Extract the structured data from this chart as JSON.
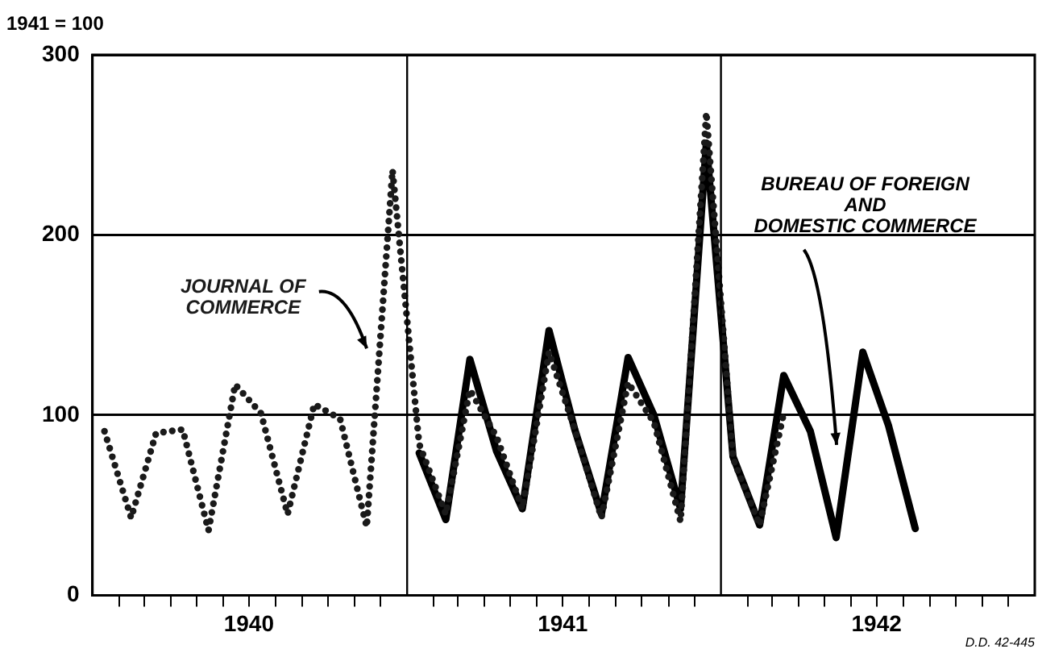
{
  "chart_data": {
    "type": "line",
    "ylabel": "1941 = 100",
    "xlim": [
      "1940-01-01",
      "1943-01-01"
    ],
    "ylim": [
      0,
      300
    ],
    "yticks": [
      0,
      100,
      200,
      300
    ],
    "xticks": [
      {
        "value": "1940-02-01",
        "label": null
      },
      {
        "value": "1940-03-01",
        "label": null
      },
      {
        "value": "1940-04-01",
        "label": null
      },
      {
        "value": "1940-05-01",
        "label": null
      },
      {
        "value": "1940-06-01",
        "label": null
      },
      {
        "value": "1940-07-01",
        "label": "1940"
      },
      {
        "value": "1940-08-01",
        "label": null
      },
      {
        "value": "1940-09-01",
        "label": null
      },
      {
        "value": "1940-10-01",
        "label": null
      },
      {
        "value": "1940-11-01",
        "label": null
      },
      {
        "value": "1940-12-01",
        "label": null
      },
      {
        "value": "1941-02-01",
        "label": null
      },
      {
        "value": "1941-03-01",
        "label": null
      },
      {
        "value": "1941-04-01",
        "label": null
      },
      {
        "value": "1941-05-01",
        "label": null
      },
      {
        "value": "1941-06-01",
        "label": null
      },
      {
        "value": "1941-07-01",
        "label": "1941"
      },
      {
        "value": "1941-08-01",
        "label": null
      },
      {
        "value": "1941-09-01",
        "label": null
      },
      {
        "value": "1941-10-01",
        "label": null
      },
      {
        "value": "1941-11-01",
        "label": null
      },
      {
        "value": "1941-12-01",
        "label": null
      },
      {
        "value": "1942-02-01",
        "label": null
      },
      {
        "value": "1942-03-01",
        "label": null
      },
      {
        "value": "1942-04-01",
        "label": null
      },
      {
        "value": "1942-05-01",
        "label": null
      },
      {
        "value": "1942-06-01",
        "label": null
      },
      {
        "value": "1942-07-01",
        "label": "1942"
      },
      {
        "value": "1942-08-01",
        "label": null
      },
      {
        "value": "1942-09-01",
        "label": null
      },
      {
        "value": "1942-10-01",
        "label": null
      },
      {
        "value": "1942-11-01",
        "label": null
      },
      {
        "value": "1942-12-01",
        "label": null
      }
    ],
    "grid": "y",
    "marker": "none",
    "ref_lines": [
      {
        "axis": "x",
        "value": "1941-01-01",
        "color": "#000000"
      },
      {
        "axis": "x",
        "value": "1942-01-01",
        "color": "#000000"
      }
    ],
    "series": [
      {
        "name": "JOURNAL OF\nCOMMERCE",
        "color": "#1a1a1a",
        "line_style": "dotted",
        "x": [
          "1940-01-15",
          "1940-02-15",
          "1940-03-15",
          "1940-04-15",
          "1940-05-15",
          "1940-06-15",
          "1940-07-15",
          "1940-08-15",
          "1940-09-15",
          "1940-10-15",
          "1940-11-15",
          "1940-12-15",
          "1941-01-15",
          "1941-02-15",
          "1941-03-15",
          "1941-04-15",
          "1941-05-15",
          "1941-06-15",
          "1941-07-15",
          "1941-08-15",
          "1941-09-15",
          "1941-10-15",
          "1941-11-15",
          "1941-12-15",
          "1942-01-15",
          "1942-02-15",
          "1942-03-15"
        ],
        "values": [
          91,
          43,
          90,
          92,
          36,
          117,
          101,
          45,
          106,
          98,
          38,
          236,
          84,
          45,
          114,
          88,
          48,
          135,
          92,
          43,
          118,
          96,
          41,
          268,
          76,
          39,
          101
        ]
      },
      {
        "name": "BUREAU OF FOREIGN\nAND\nDOMESTIC COMMERCE",
        "color": "#000000",
        "line_style": "solid",
        "x": [
          "1941-01-15",
          "1941-02-15",
          "1941-03-15",
          "1941-04-15",
          "1941-05-15",
          "1941-06-15",
          "1941-07-15",
          "1941-08-15",
          "1941-09-15",
          "1941-10-15",
          "1941-11-15",
          "1941-12-15",
          "1942-01-15",
          "1942-02-15",
          "1942-03-15",
          "1942-04-15",
          "1942-05-15",
          "1942-06-15",
          "1942-07-15",
          "1942-08-15"
        ],
        "values": [
          79,
          42,
          131,
          80,
          48,
          147,
          92,
          45,
          132,
          100,
          48,
          251,
          77,
          39,
          122,
          91,
          32,
          135,
          94,
          37
        ]
      }
    ],
    "annotations": [
      "D.D. 42-445"
    ]
  }
}
